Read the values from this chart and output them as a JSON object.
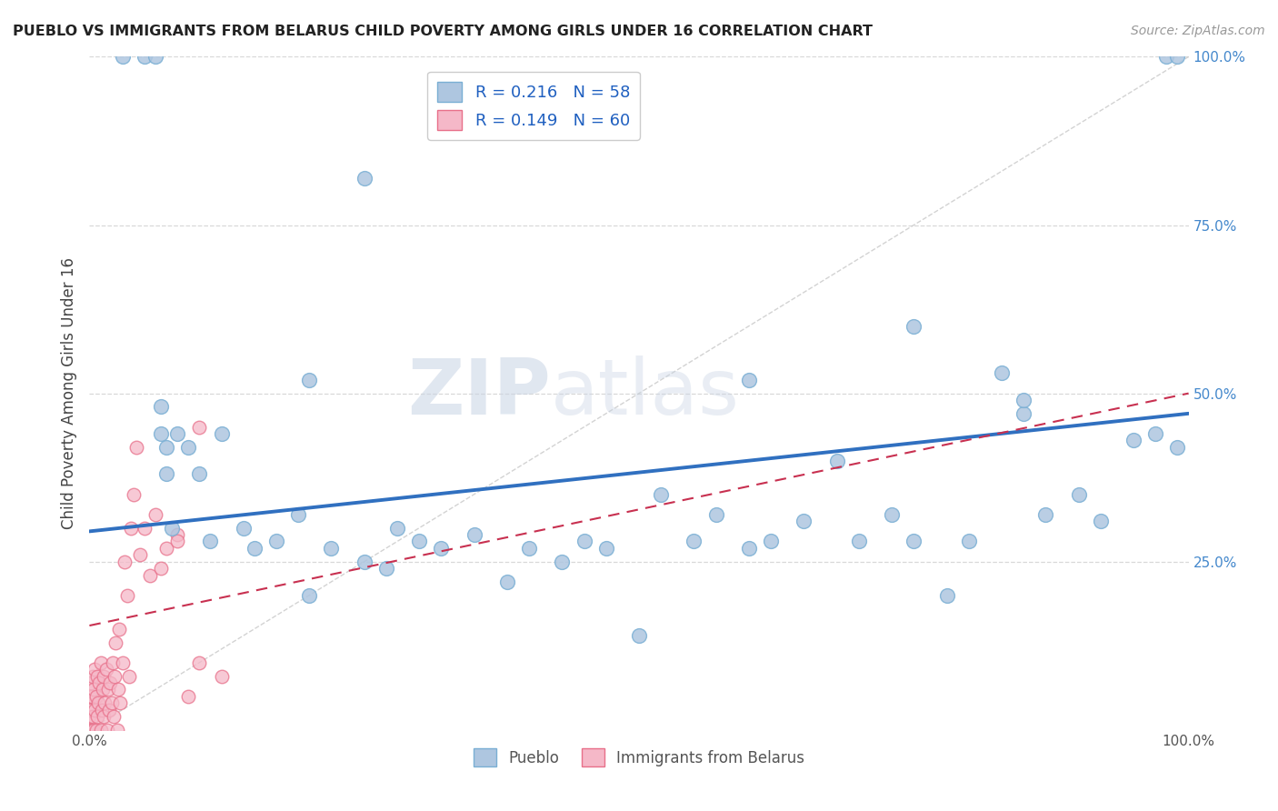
{
  "title": "PUEBLO VS IMMIGRANTS FROM BELARUS CHILD POVERTY AMONG GIRLS UNDER 16 CORRELATION CHART",
  "source": "Source: ZipAtlas.com",
  "ylabel": "Child Poverty Among Girls Under 16",
  "series1_label": "Pueblo",
  "series2_label": "Immigrants from Belarus",
  "series1_color": "#aec6e0",
  "series2_color": "#f5b8c8",
  "series1_edge": "#7aafd4",
  "series2_edge": "#e8708a",
  "trend1_color": "#3070c0",
  "trend2_color": "#c83050",
  "R1": 0.216,
  "N1": 58,
  "R2": 0.149,
  "N2": 60,
  "legend_r_color": "#2060c0",
  "xlim": [
    0,
    1
  ],
  "ylim": [
    0,
    1
  ],
  "right_yticks": [
    0.25,
    0.5,
    0.75,
    1.0
  ],
  "right_yticklabels": [
    "25.0%",
    "50.0%",
    "75.0%",
    "100.0%"
  ],
  "watermark_zip": "ZIP",
  "watermark_atlas": "atlas",
  "trend1_x0": 0.0,
  "trend1_y0": 0.295,
  "trend1_x1": 1.0,
  "trend1_y1": 0.47,
  "trend2_x0": 0.0,
  "trend2_y0": 0.155,
  "trend2_x1": 1.0,
  "trend2_y1": 0.5,
  "pueblo_x": [
    0.03,
    0.05,
    0.06,
    0.065,
    0.065,
    0.07,
    0.07,
    0.075,
    0.08,
    0.09,
    0.1,
    0.11,
    0.12,
    0.14,
    0.15,
    0.17,
    0.19,
    0.2,
    0.22,
    0.25,
    0.27,
    0.28,
    0.3,
    0.32,
    0.35,
    0.38,
    0.4,
    0.43,
    0.45,
    0.47,
    0.5,
    0.52,
    0.55,
    0.57,
    0.6,
    0.62,
    0.65,
    0.68,
    0.7,
    0.73,
    0.75,
    0.78,
    0.8,
    0.83,
    0.85,
    0.87,
    0.9,
    0.92,
    0.95,
    0.97,
    0.98,
    0.99,
    0.99,
    0.2,
    0.25,
    0.6,
    0.75,
    0.85
  ],
  "pueblo_y": [
    1.0,
    1.0,
    1.0,
    0.48,
    0.44,
    0.42,
    0.38,
    0.3,
    0.44,
    0.42,
    0.38,
    0.28,
    0.44,
    0.3,
    0.27,
    0.28,
    0.32,
    0.2,
    0.27,
    0.25,
    0.24,
    0.3,
    0.28,
    0.27,
    0.29,
    0.22,
    0.27,
    0.25,
    0.28,
    0.27,
    0.14,
    0.35,
    0.28,
    0.32,
    0.27,
    0.28,
    0.31,
    0.4,
    0.28,
    0.32,
    0.28,
    0.2,
    0.28,
    0.53,
    0.47,
    0.32,
    0.35,
    0.31,
    0.43,
    0.44,
    1.0,
    1.0,
    0.42,
    0.52,
    0.82,
    0.52,
    0.6,
    0.49
  ],
  "belarus_x": [
    0.0,
    0.0,
    0.0,
    0.001,
    0.001,
    0.001,
    0.002,
    0.002,
    0.003,
    0.003,
    0.004,
    0.004,
    0.005,
    0.005,
    0.006,
    0.006,
    0.007,
    0.007,
    0.008,
    0.009,
    0.01,
    0.01,
    0.011,
    0.012,
    0.013,
    0.013,
    0.014,
    0.015,
    0.016,
    0.017,
    0.018,
    0.019,
    0.02,
    0.021,
    0.022,
    0.023,
    0.024,
    0.025,
    0.026,
    0.027,
    0.028,
    0.03,
    0.032,
    0.034,
    0.036,
    0.038,
    0.04,
    0.043,
    0.046,
    0.05,
    0.055,
    0.06,
    0.065,
    0.07,
    0.08,
    0.09,
    0.1,
    0.12,
    0.1,
    0.08
  ],
  "belarus_y": [
    0.0,
    0.02,
    0.05,
    0.0,
    0.03,
    0.07,
    0.0,
    0.05,
    0.02,
    0.08,
    0.0,
    0.06,
    0.03,
    0.09,
    0.0,
    0.05,
    0.02,
    0.08,
    0.04,
    0.07,
    0.0,
    0.1,
    0.03,
    0.06,
    0.02,
    0.08,
    0.04,
    0.09,
    0.0,
    0.06,
    0.03,
    0.07,
    0.04,
    0.1,
    0.02,
    0.08,
    0.13,
    0.0,
    0.06,
    0.15,
    0.04,
    0.1,
    0.25,
    0.2,
    0.08,
    0.3,
    0.35,
    0.42,
    0.26,
    0.3,
    0.23,
    0.32,
    0.24,
    0.27,
    0.29,
    0.05,
    0.1,
    0.08,
    0.45,
    0.28
  ]
}
